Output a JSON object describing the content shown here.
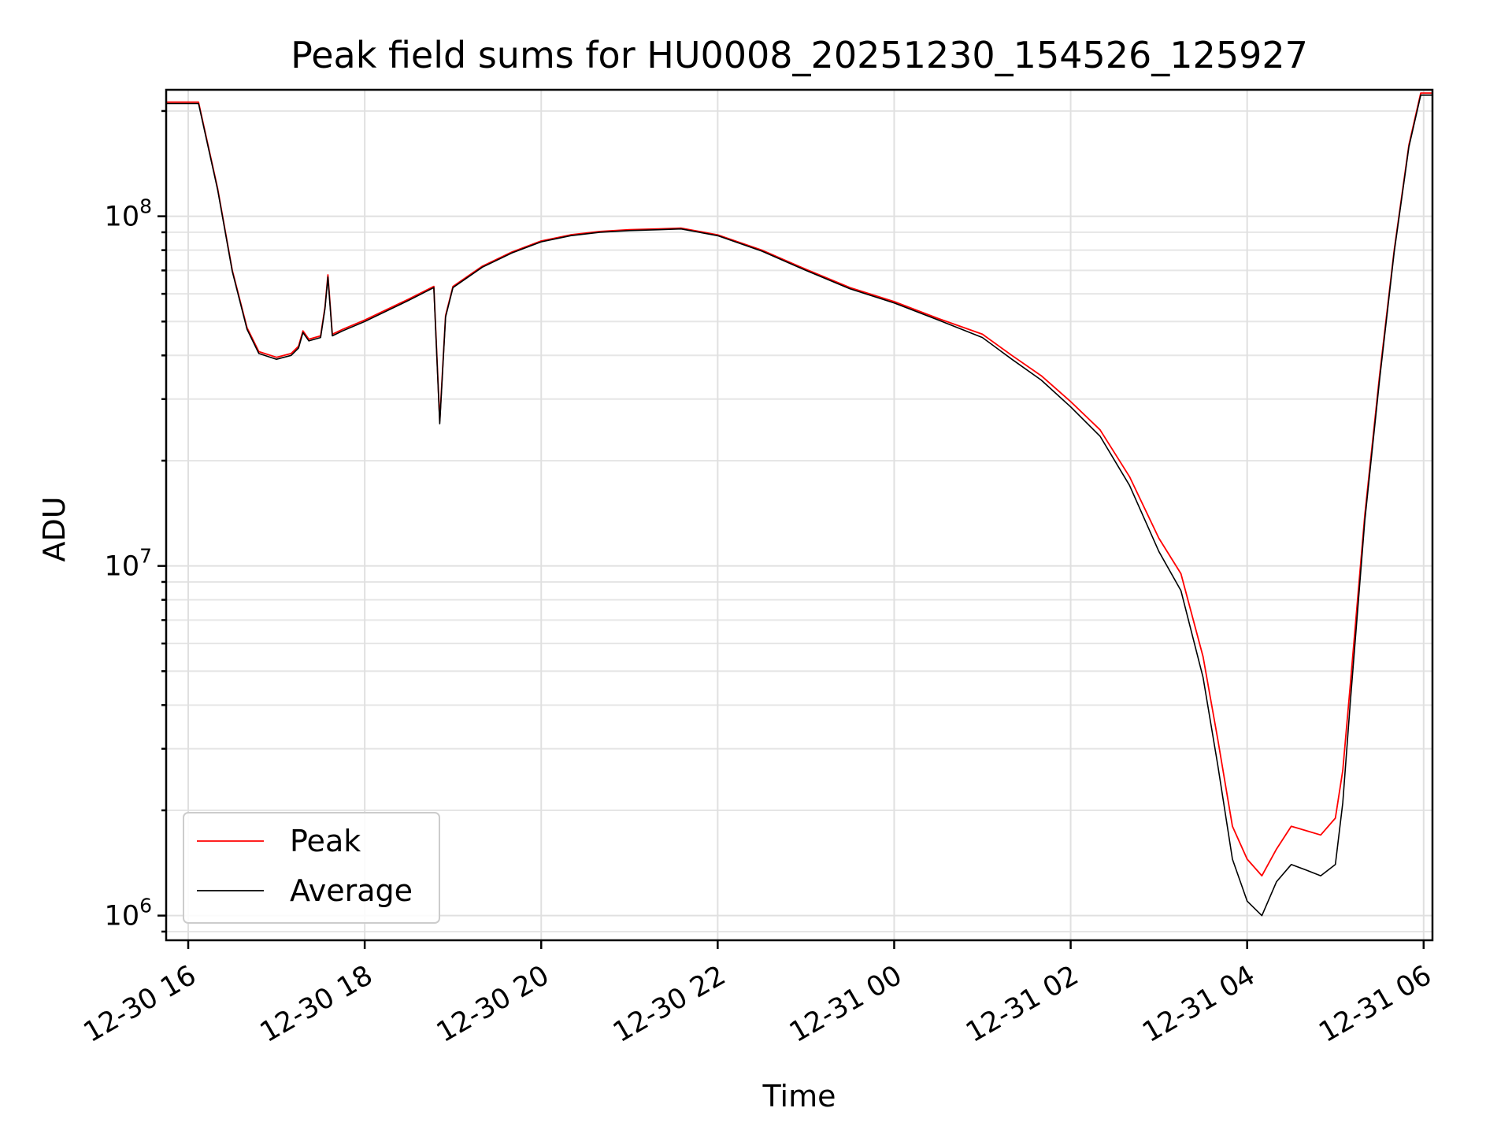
{
  "chart_data": {
    "type": "line",
    "title": "Peak field sums for HU0008_20251230_154526_125927",
    "xlabel": "Time",
    "ylabel": "ADU",
    "yscale": "log",
    "xlim": [
      "12-30 15:45",
      "12-31 06:06"
    ],
    "ylim": [
      850000,
      230000000
    ],
    "grid": true,
    "legend": {
      "position": "lower-left",
      "entries": [
        "Peak",
        "Average"
      ]
    },
    "x_ticks": [
      "12-30 16",
      "12-30 18",
      "12-30 20",
      "12-30 22",
      "12-31 00",
      "12-31 02",
      "12-31 04",
      "12-31 06"
    ],
    "y_ticks": [
      {
        "value": 1000000,
        "base": "10",
        "exp": "6"
      },
      {
        "value": 10000000,
        "base": "10",
        "exp": "7"
      },
      {
        "value": 100000000,
        "base": "10",
        "exp": "8"
      }
    ],
    "series": [
      {
        "name": "Peak",
        "color": "#ff0000",
        "points": [
          [
            "12-30 15:45",
            212000000
          ],
          [
            "12-30 16:07",
            212000000
          ],
          [
            "12-30 16:20",
            120000000
          ],
          [
            "12-30 16:30",
            70000000
          ],
          [
            "12-30 16:40",
            48000000
          ],
          [
            "12-30 16:48",
            41000000
          ],
          [
            "12-30 17:00",
            39500000
          ],
          [
            "12-30 17:10",
            40500000
          ],
          [
            "12-30 17:15",
            42500000
          ],
          [
            "12-30 17:18",
            47000000
          ],
          [
            "12-30 17:22",
            44500000
          ],
          [
            "12-30 17:30",
            45500000
          ],
          [
            "12-30 17:33",
            55000000
          ],
          [
            "12-30 17:35",
            68000000
          ],
          [
            "12-30 17:38",
            46000000
          ],
          [
            "12-30 17:45",
            47500000
          ],
          [
            "12-30 18:00",
            50500000
          ],
          [
            "12-30 18:30",
            58000000
          ],
          [
            "12-30 18:47",
            63000000
          ],
          [
            "12-30 18:51",
            26000000
          ],
          [
            "12-30 18:55",
            52000000
          ],
          [
            "12-30 19:00",
            63000000
          ],
          [
            "12-30 19:20",
            72000000
          ],
          [
            "12-30 19:40",
            79000000
          ],
          [
            "12-30 20:00",
            85000000
          ],
          [
            "12-30 20:20",
            88500000
          ],
          [
            "12-30 20:40",
            90500000
          ],
          [
            "12-30 21:00",
            91500000
          ],
          [
            "12-30 21:20",
            92000000
          ],
          [
            "12-30 21:35",
            92500000
          ],
          [
            "12-30 22:00",
            88500000
          ],
          [
            "12-30 22:30",
            80000000
          ],
          [
            "12-30 23:00",
            70500000
          ],
          [
            "12-30 23:30",
            62500000
          ],
          [
            "12-31 00:00",
            57000000
          ],
          [
            "12-31 00:30",
            51000000
          ],
          [
            "12-31 01:00",
            46000000
          ],
          [
            "12-31 01:20",
            40000000
          ],
          [
            "12-31 01:40",
            35000000
          ],
          [
            "12-31 02:00",
            29500000
          ],
          [
            "12-31 02:20",
            24500000
          ],
          [
            "12-31 02:40",
            18000000
          ],
          [
            "12-31 03:00",
            12000000
          ],
          [
            "12-31 03:15",
            9500000
          ],
          [
            "12-31 03:30",
            5500000
          ],
          [
            "12-31 03:40",
            3200000
          ],
          [
            "12-31 03:50",
            1800000
          ],
          [
            "12-31 04:00",
            1450000
          ],
          [
            "12-31 04:10",
            1300000
          ],
          [
            "12-31 04:20",
            1550000
          ],
          [
            "12-31 04:30",
            1800000
          ],
          [
            "12-31 04:40",
            1750000
          ],
          [
            "12-31 04:50",
            1700000
          ],
          [
            "12-31 05:00",
            1900000
          ],
          [
            "12-31 05:05",
            2600000
          ],
          [
            "12-31 05:10",
            4500000
          ],
          [
            "12-31 05:20",
            14000000
          ],
          [
            "12-31 05:30",
            35000000
          ],
          [
            "12-31 05:40",
            80000000
          ],
          [
            "12-31 05:50",
            160000000
          ],
          [
            "12-31 05:58",
            225000000
          ],
          [
            "12-31 06:06",
            225000000
          ]
        ]
      },
      {
        "name": "Average",
        "color": "#000000",
        "points": [
          [
            "12-30 15:45",
            210000000
          ],
          [
            "12-30 16:07",
            210000000
          ],
          [
            "12-30 16:20",
            119000000
          ],
          [
            "12-30 16:30",
            69500000
          ],
          [
            "12-30 16:40",
            47500000
          ],
          [
            "12-30 16:48",
            40500000
          ],
          [
            "12-30 17:00",
            39000000
          ],
          [
            "12-30 17:10",
            40000000
          ],
          [
            "12-30 17:15",
            42000000
          ],
          [
            "12-30 17:18",
            46500000
          ],
          [
            "12-30 17:22",
            44000000
          ],
          [
            "12-30 17:30",
            45000000
          ],
          [
            "12-30 17:33",
            54500000
          ],
          [
            "12-30 17:35",
            67000000
          ],
          [
            "12-30 17:38",
            45500000
          ],
          [
            "12-30 17:45",
            47000000
          ],
          [
            "12-30 18:00",
            50000000
          ],
          [
            "12-30 18:30",
            57500000
          ],
          [
            "12-30 18:47",
            62500000
          ],
          [
            "12-30 18:51",
            25500000
          ],
          [
            "12-30 18:55",
            51500000
          ],
          [
            "12-30 19:00",
            62500000
          ],
          [
            "12-30 19:20",
            71500000
          ],
          [
            "12-30 19:40",
            78500000
          ],
          [
            "12-30 20:00",
            84500000
          ],
          [
            "12-30 20:20",
            88000000
          ],
          [
            "12-30 20:40",
            90000000
          ],
          [
            "12-30 21:00",
            91000000
          ],
          [
            "12-30 21:20",
            91500000
          ],
          [
            "12-30 21:35",
            92000000
          ],
          [
            "12-30 22:00",
            88000000
          ],
          [
            "12-30 22:30",
            79500000
          ],
          [
            "12-30 23:00",
            70000000
          ],
          [
            "12-30 23:30",
            62000000
          ],
          [
            "12-31 00:00",
            56500000
          ],
          [
            "12-31 00:30",
            50500000
          ],
          [
            "12-31 01:00",
            45000000
          ],
          [
            "12-31 01:20",
            39000000
          ],
          [
            "12-31 01:40",
            34000000
          ],
          [
            "12-31 02:00",
            28500000
          ],
          [
            "12-31 02:20",
            23500000
          ],
          [
            "12-31 02:40",
            17000000
          ],
          [
            "12-31 03:00",
            11000000
          ],
          [
            "12-31 03:15",
            8500000
          ],
          [
            "12-31 03:30",
            4800000
          ],
          [
            "12-31 03:40",
            2700000
          ],
          [
            "12-31 03:50",
            1450000
          ],
          [
            "12-31 04:00",
            1100000
          ],
          [
            "12-31 04:10",
            1000000
          ],
          [
            "12-31 04:20",
            1250000
          ],
          [
            "12-31 04:30",
            1400000
          ],
          [
            "12-31 04:40",
            1350000
          ],
          [
            "12-31 04:50",
            1300000
          ],
          [
            "12-31 05:00",
            1400000
          ],
          [
            "12-31 05:05",
            2100000
          ],
          [
            "12-31 05:10",
            4000000
          ],
          [
            "12-31 05:20",
            13500000
          ],
          [
            "12-31 05:30",
            34000000
          ],
          [
            "12-31 05:40",
            79000000
          ],
          [
            "12-31 05:50",
            158000000
          ],
          [
            "12-31 05:58",
            222000000
          ],
          [
            "12-31 06:06",
            222000000
          ]
        ]
      }
    ]
  }
}
